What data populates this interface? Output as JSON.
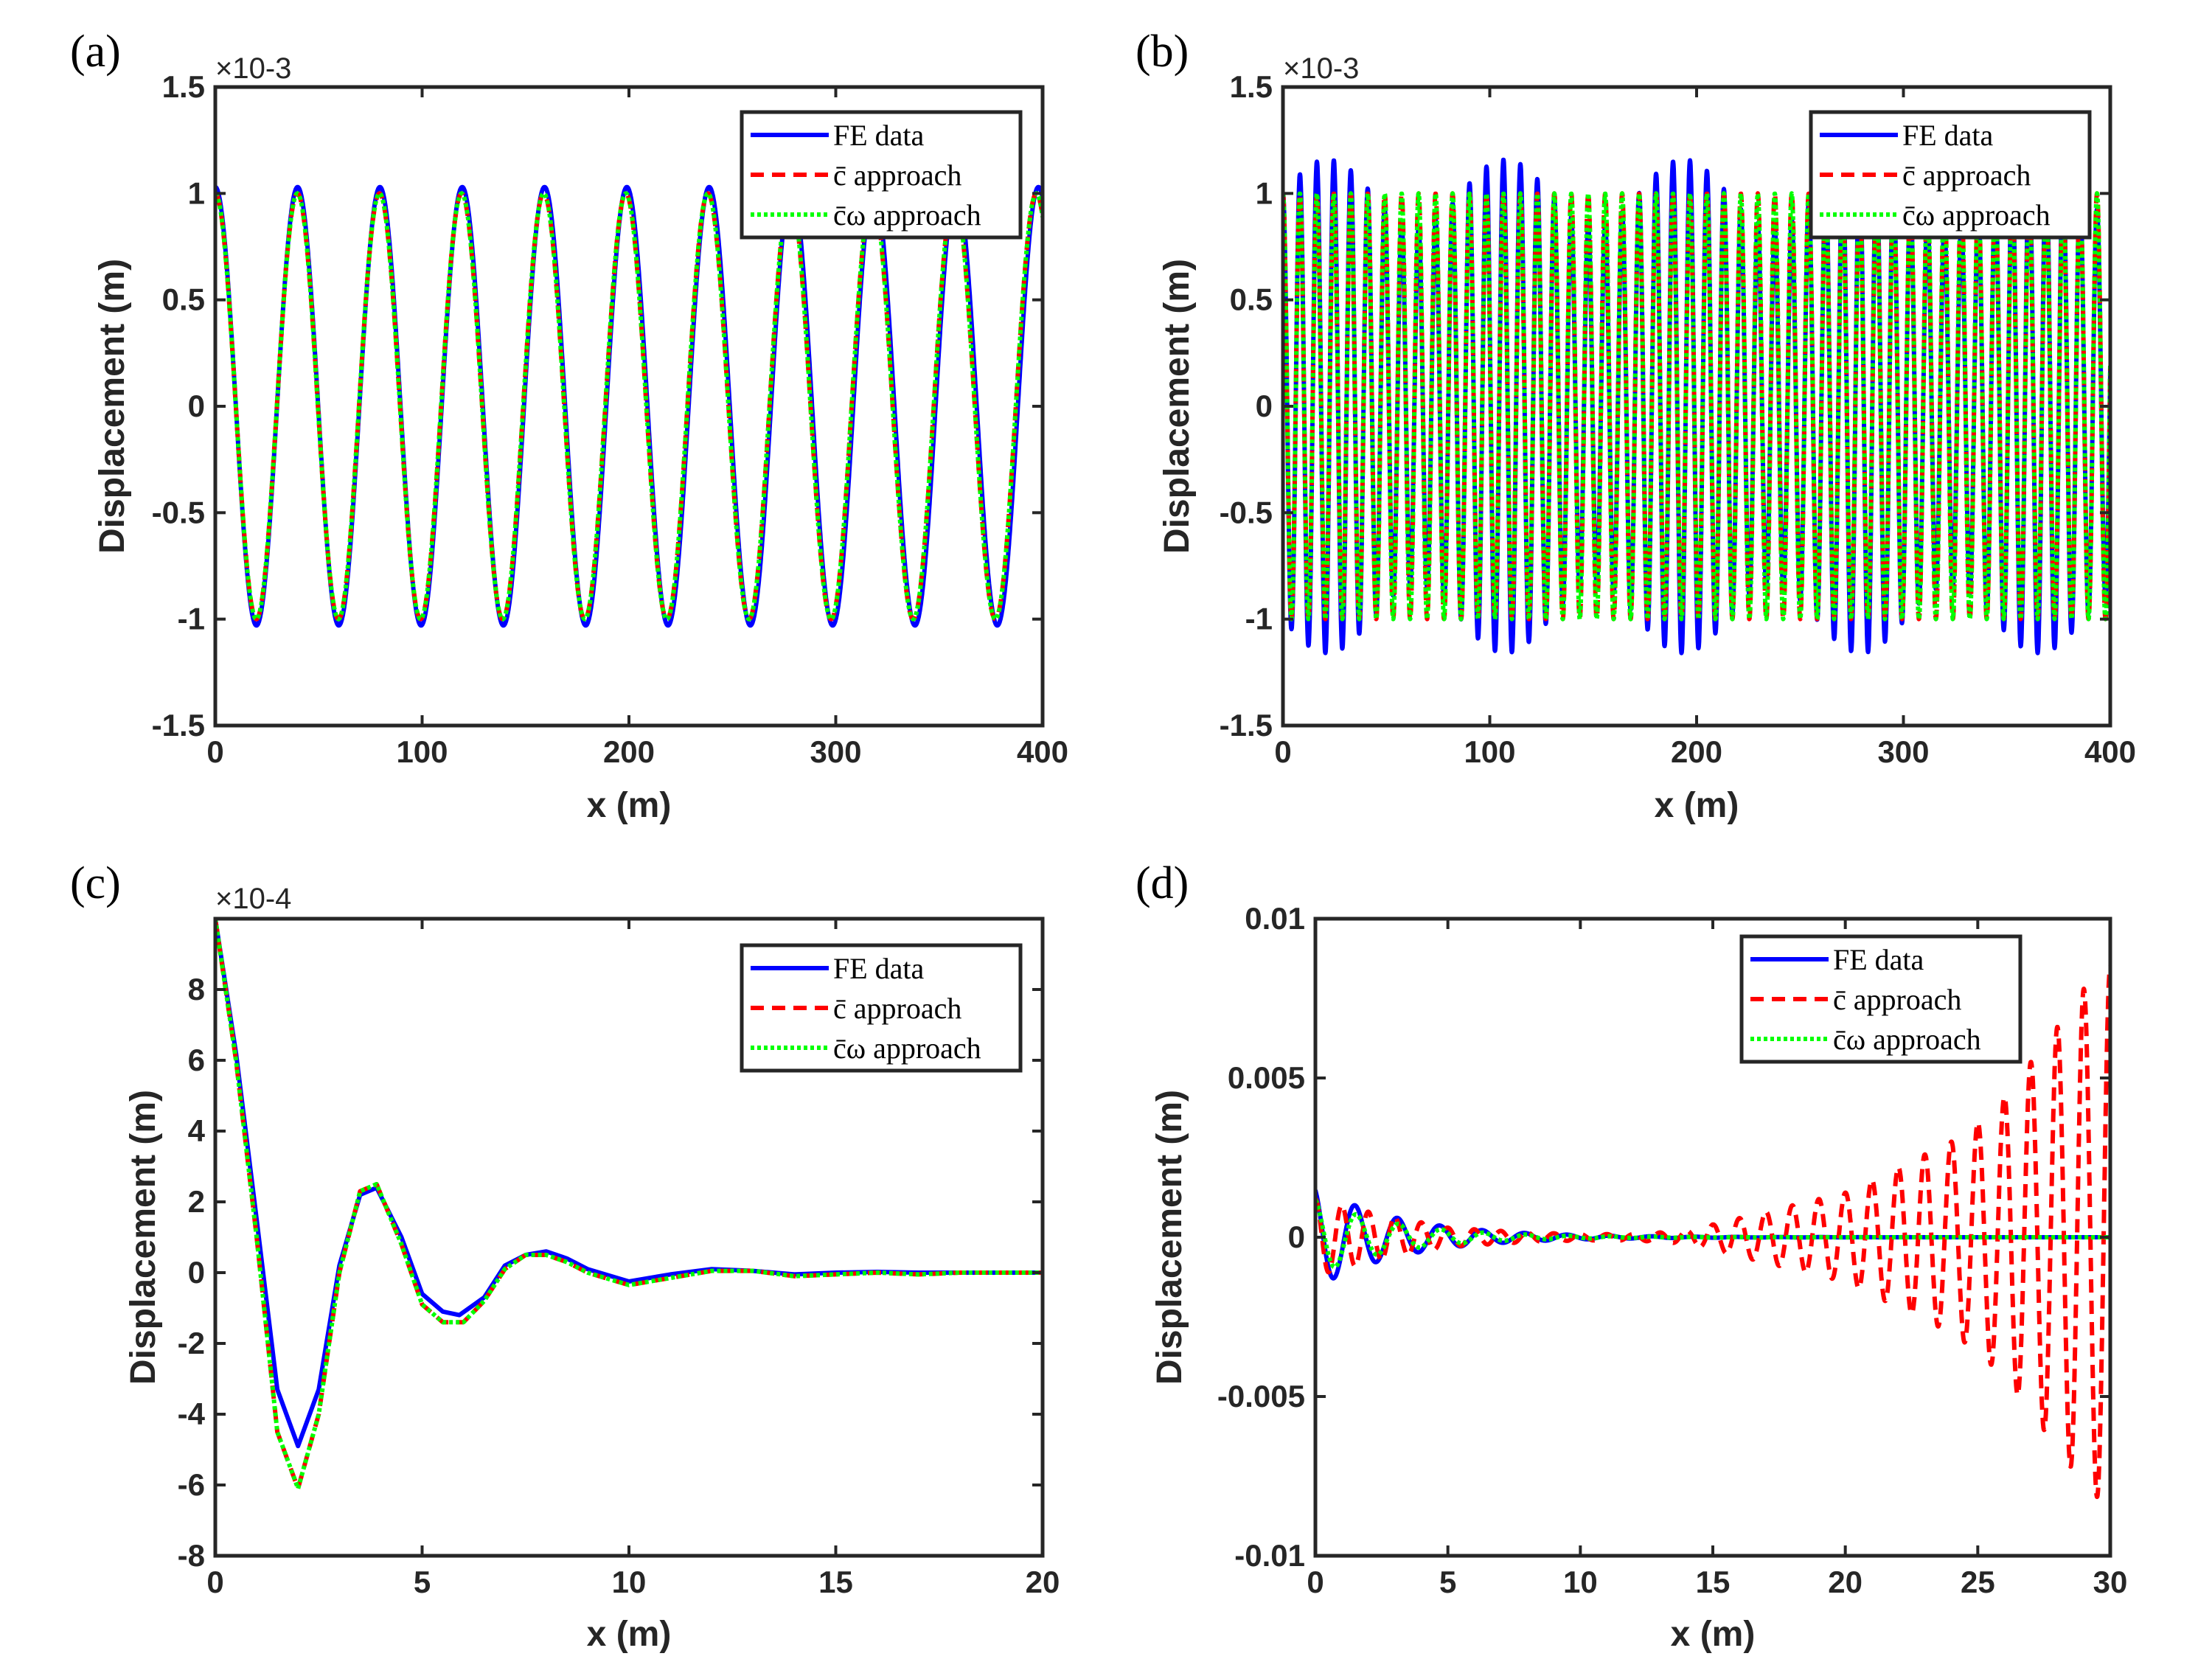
{
  "figure": {
    "description_free": true
  },
  "colors": {
    "fe": "#0000ff",
    "c": "#ff0000",
    "cw": "#00ff00",
    "axis": "#262626"
  },
  "chart_data": [
    {
      "type": "line",
      "panel_label": "(a)",
      "xlabel": "x (m)",
      "ylabel": "Displacement (m)",
      "exponent_label": "×10-3",
      "xlim": [
        0,
        400
      ],
      "ylim": [
        -1.5,
        1.5
      ],
      "xticks": [
        0,
        100,
        200,
        300,
        400
      ],
      "xtick_labels": [
        "0",
        "100",
        "200",
        "300",
        "400"
      ],
      "yticks": [
        -1.5,
        -1,
        -0.5,
        0,
        0.5,
        1,
        1.5
      ],
      "ytick_labels": [
        "-1.5",
        "-1",
        "-0.5",
        "0",
        "0.5",
        "1",
        "1.5"
      ],
      "legend": [
        "FE data",
        "c̄ approach",
        "c̄ω approach"
      ],
      "legend_position": "top-right",
      "series": [
        {
          "name": "FE data",
          "model": "cos",
          "amplitude": 1.03,
          "wavelength": 39.8,
          "x_range": [
            0,
            400
          ]
        },
        {
          "name": "c̄ approach",
          "model": "cos",
          "amplitude": 1.0,
          "wavelength": 39.7,
          "x_range": [
            0,
            400
          ]
        },
        {
          "name": "c̄ω approach",
          "model": "cos",
          "amplitude": 1.0,
          "wavelength": 39.7,
          "x_range": [
            0,
            400
          ]
        }
      ]
    },
    {
      "type": "line",
      "panel_label": "(b)",
      "xlabel": "x (m)",
      "ylabel": "Displacement (m)",
      "exponent_label": "×10-3",
      "xlim": [
        0,
        400
      ],
      "ylim": [
        -1.5,
        1.5
      ],
      "xticks": [
        0,
        100,
        200,
        300,
        400
      ],
      "xtick_labels": [
        "0",
        "100",
        "200",
        "300",
        "400"
      ],
      "yticks": [
        -1.5,
        -1,
        -0.5,
        0,
        0.5,
        1,
        1.5
      ],
      "ytick_labels": [
        "-1.5",
        "-1",
        "-0.5",
        "0",
        "0.5",
        "1",
        "1.5"
      ],
      "legend": [
        "FE data",
        "c̄ approach",
        "c̄ω approach"
      ],
      "legend_position": "top-right",
      "series": [
        {
          "name": "FE data",
          "model": "beat",
          "amplitude": 1.0,
          "wavelength": 8.2,
          "beat_amplitude": 0.16,
          "beat_period": 86,
          "x_range": [
            0,
            400
          ]
        },
        {
          "name": "c̄ approach",
          "model": "cos",
          "amplitude": 1.0,
          "wavelength": 8.2,
          "x_range": [
            0,
            400
          ]
        },
        {
          "name": "c̄ω approach",
          "model": "cos",
          "amplitude": 1.0,
          "wavelength": 8.2,
          "x_range": [
            0,
            400
          ]
        }
      ]
    },
    {
      "type": "line",
      "panel_label": "(c)",
      "xlabel": "x (m)",
      "ylabel": "Displacement (m)",
      "exponent_label": "×10-4",
      "xlim": [
        0,
        20
      ],
      "ylim": [
        -8,
        10
      ],
      "xticks": [
        0,
        5,
        10,
        15,
        20
      ],
      "xtick_labels": [
        "0",
        "5",
        "10",
        "15",
        "20"
      ],
      "yticks": [
        -8,
        -6,
        -4,
        -2,
        0,
        2,
        4,
        6,
        8
      ],
      "ytick_labels": [
        "-8",
        "-6",
        "-4",
        "-2",
        "0",
        "2",
        "4",
        "6",
        "8"
      ],
      "legend": [
        "FE data",
        "c̄ approach",
        "c̄ω approach"
      ],
      "legend_position": "top-right",
      "series": [
        {
          "name": "FE data",
          "model": "points",
          "x": [
            0,
            0.5,
            1.0,
            1.5,
            2.0,
            2.5,
            3.0,
            3.5,
            3.9,
            4.5,
            5.0,
            5.5,
            5.9,
            6.5,
            7.0,
            7.5,
            8.0,
            8.5,
            9.0,
            10.0,
            11.0,
            12.0,
            13.0,
            14.0,
            15.0,
            16.0,
            17.0,
            18.0,
            20.0
          ],
          "y": [
            10,
            6.2,
            1.5,
            -3.3,
            -4.9,
            -3.3,
            0.2,
            2.2,
            2.4,
            1.0,
            -0.6,
            -1.1,
            -1.2,
            -0.7,
            0.2,
            0.5,
            0.6,
            0.4,
            0.1,
            -0.25,
            -0.05,
            0.1,
            0.05,
            -0.05,
            0.0,
            0.02,
            0.0,
            0.0,
            0.0
          ]
        },
        {
          "name": "c̄ approach",
          "model": "points",
          "x": [
            0,
            0.5,
            1.0,
            1.5,
            2.0,
            2.5,
            3.0,
            3.5,
            3.9,
            4.5,
            5.0,
            5.5,
            6.0,
            6.5,
            7.0,
            7.5,
            8.0,
            8.5,
            9.0,
            10.0,
            11.0,
            12.0,
            13.0,
            14.0,
            15.0,
            16.0,
            17.0,
            18.0,
            20.0
          ],
          "y": [
            10,
            6.0,
            1.0,
            -4.5,
            -6.1,
            -4.0,
            0.0,
            2.3,
            2.5,
            0.8,
            -0.9,
            -1.4,
            -1.4,
            -0.8,
            0.1,
            0.5,
            0.5,
            0.3,
            0.0,
            -0.35,
            -0.15,
            0.05,
            0.05,
            -0.1,
            -0.05,
            0.0,
            -0.05,
            0.0,
            0.0
          ]
        },
        {
          "name": "c̄ω approach",
          "model": "points",
          "x": [
            0,
            0.5,
            1.0,
            1.5,
            2.0,
            2.5,
            3.0,
            3.5,
            3.9,
            4.5,
            5.0,
            5.5,
            6.0,
            6.5,
            7.0,
            7.5,
            8.0,
            8.5,
            9.0,
            10.0,
            11.0,
            12.0,
            13.0,
            14.0,
            15.0,
            16.0,
            17.0,
            18.0,
            20.0
          ],
          "y": [
            10,
            6.0,
            1.0,
            -4.5,
            -6.1,
            -4.0,
            0.0,
            2.3,
            2.5,
            0.8,
            -0.9,
            -1.4,
            -1.4,
            -0.8,
            0.1,
            0.5,
            0.5,
            0.3,
            0.0,
            -0.35,
            -0.15,
            0.05,
            0.05,
            -0.1,
            -0.05,
            0.0,
            -0.05,
            0.0,
            0.0
          ]
        }
      ]
    },
    {
      "type": "line",
      "panel_label": "(d)",
      "xlabel": "x (m)",
      "ylabel": "Displacement (m)",
      "exponent_label": "",
      "xlim": [
        0,
        30
      ],
      "ylim": [
        -0.01,
        0.01
      ],
      "xticks": [
        0,
        5,
        10,
        15,
        20,
        25,
        30
      ],
      "xtick_labels": [
        "0",
        "5",
        "10",
        "15",
        "20",
        "25",
        "30"
      ],
      "yticks": [
        -0.01,
        -0.005,
        0,
        0.005,
        0.01
      ],
      "ytick_labels": [
        "-0.01",
        "-0.005",
        "0",
        "0.005",
        "0.01"
      ],
      "legend": [
        "FE data",
        "c̄ approach",
        "c̄ω approach"
      ],
      "legend_position": "top-right",
      "series": [
        {
          "name": "FE data",
          "model": "decay",
          "amplitude": 0.0016,
          "wavelength": 1.6,
          "decay_length": 3.2,
          "phase_shift": 0.4,
          "x_range": [
            0,
            30
          ]
        },
        {
          "name": "c̄ approach",
          "model": "growth",
          "amplitude": 0.001,
          "wavelength": 1.0,
          "x_range": [
            0,
            30
          ],
          "envelope_x": [
            0,
            2,
            5,
            8,
            10,
            12,
            14,
            15,
            17,
            19,
            20,
            22,
            24,
            25,
            26,
            27,
            28,
            29,
            30
          ],
          "envelope_y": [
            0.0012,
            0.0008,
            0.0003,
            0.00015,
            0.0001,
            0.0001,
            0.0002,
            0.0004,
            0.0008,
            0.0012,
            0.0014,
            0.0022,
            0.003,
            0.0036,
            0.0044,
            0.0055,
            0.0066,
            0.0078,
            0.0085
          ]
        },
        {
          "name": "c̄ω approach",
          "model": "decay",
          "amplitude": 0.0012,
          "wavelength": 1.6,
          "decay_length": 3.0,
          "phase_shift": 0.2,
          "x_range": [
            0,
            30
          ]
        }
      ]
    }
  ]
}
